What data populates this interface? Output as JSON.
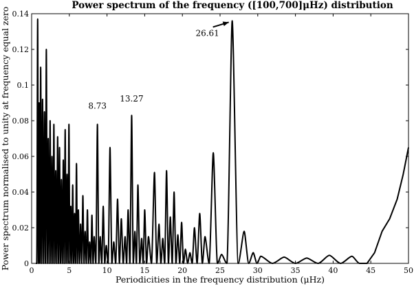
{
  "chart_data": {
    "type": "line",
    "title": "Power spectrum of the frequency ([100,700]μHz) distribution",
    "xlabel": "Periodicities in the frequency distribution (μHz)",
    "ylabel": "Power spectrum normalised to unity at frequency equal zero",
    "xlim": [
      0,
      50
    ],
    "ylim": [
      0,
      0.14
    ],
    "xticks": [
      0,
      5,
      10,
      15,
      20,
      25,
      30,
      35,
      40,
      45,
      50
    ],
    "xtick_labels": [
      "0",
      "5",
      "10",
      "15",
      "20",
      "25",
      "30",
      "35",
      "40",
      "45",
      "50"
    ],
    "yticks": [
      0,
      0.02,
      0.04,
      0.06,
      0.08,
      0.1,
      0.12,
      0.14
    ],
    "ytick_labels": [
      "0",
      "0.02",
      "0.04",
      "0.06",
      "0.08",
      "0.1",
      "0.12",
      "0.14"
    ],
    "grid": false,
    "line_color": "#000000",
    "annotations": [
      {
        "text": "8.73",
        "x": 8.73,
        "y": 0.086
      },
      {
        "text": "13.27",
        "x": 13.27,
        "y": 0.09
      },
      {
        "text": "26.61",
        "x": 26.61,
        "y": 0.136,
        "arrow": true
      }
    ],
    "peaks": [
      {
        "x": 0.8,
        "y": 0.137
      },
      {
        "x": 1.0,
        "y": 0.09
      },
      {
        "x": 1.2,
        "y": 0.11
      },
      {
        "x": 1.45,
        "y": 0.092
      },
      {
        "x": 1.7,
        "y": 0.085
      },
      {
        "x": 1.95,
        "y": 0.12
      },
      {
        "x": 2.2,
        "y": 0.07
      },
      {
        "x": 2.45,
        "y": 0.08
      },
      {
        "x": 2.7,
        "y": 0.06
      },
      {
        "x": 2.95,
        "y": 0.078
      },
      {
        "x": 3.2,
        "y": 0.052
      },
      {
        "x": 3.45,
        "y": 0.071
      },
      {
        "x": 3.7,
        "y": 0.065
      },
      {
        "x": 3.95,
        "y": 0.047
      },
      {
        "x": 4.2,
        "y": 0.058
      },
      {
        "x": 4.45,
        "y": 0.075
      },
      {
        "x": 4.7,
        "y": 0.05
      },
      {
        "x": 4.95,
        "y": 0.078
      },
      {
        "x": 5.2,
        "y": 0.032
      },
      {
        "x": 5.45,
        "y": 0.044
      },
      {
        "x": 5.7,
        "y": 0.028
      },
      {
        "x": 5.95,
        "y": 0.056
      },
      {
        "x": 6.2,
        "y": 0.03
      },
      {
        "x": 6.5,
        "y": 0.022
      },
      {
        "x": 6.8,
        "y": 0.038
      },
      {
        "x": 7.1,
        "y": 0.018
      },
      {
        "x": 7.4,
        "y": 0.03
      },
      {
        "x": 7.7,
        "y": 0.012
      },
      {
        "x": 8.0,
        "y": 0.027
      },
      {
        "x": 8.3,
        "y": 0.015
      },
      {
        "x": 8.73,
        "y": 0.078
      },
      {
        "x": 9.1,
        "y": 0.015
      },
      {
        "x": 9.5,
        "y": 0.032
      },
      {
        "x": 9.9,
        "y": 0.01
      },
      {
        "x": 10.4,
        "y": 0.065
      },
      {
        "x": 10.9,
        "y": 0.012
      },
      {
        "x": 11.4,
        "y": 0.036
      },
      {
        "x": 11.9,
        "y": 0.025
      },
      {
        "x": 12.4,
        "y": 0.015
      },
      {
        "x": 12.8,
        "y": 0.03
      },
      {
        "x": 13.27,
        "y": 0.083
      },
      {
        "x": 13.7,
        "y": 0.018
      },
      {
        "x": 14.1,
        "y": 0.044
      },
      {
        "x": 14.6,
        "y": 0.014
      },
      {
        "x": 15.0,
        "y": 0.03
      },
      {
        "x": 15.5,
        "y": 0.015
      },
      {
        "x": 16.3,
        "y": 0.051
      },
      {
        "x": 16.9,
        "y": 0.022
      },
      {
        "x": 17.4,
        "y": 0.014
      },
      {
        "x": 17.9,
        "y": 0.052
      },
      {
        "x": 18.4,
        "y": 0.026
      },
      {
        "x": 18.9,
        "y": 0.04
      },
      {
        "x": 19.4,
        "y": 0.016
      },
      {
        "x": 19.9,
        "y": 0.023
      },
      {
        "x": 20.4,
        "y": 0.008
      },
      {
        "x": 21.0,
        "y": 0.006
      },
      {
        "x": 21.6,
        "y": 0.02
      },
      {
        "x": 22.3,
        "y": 0.028
      },
      {
        "x": 23.0,
        "y": 0.015
      },
      {
        "x": 24.1,
        "y": 0.062
      },
      {
        "x": 25.2,
        "y": 0.005
      },
      {
        "x": 26.61,
        "y": 0.136
      },
      {
        "x": 28.2,
        "y": 0.018
      },
      {
        "x": 29.4,
        "y": 0.006
      },
      {
        "x": 30.4,
        "y": 0.004
      },
      {
        "x": 33.5,
        "y": 0.0035
      },
      {
        "x": 36.5,
        "y": 0.003
      },
      {
        "x": 39.5,
        "y": 0.0045
      },
      {
        "x": 42.5,
        "y": 0.004
      }
    ],
    "tail": [
      {
        "x": 44.5,
        "y": 0.0
      },
      {
        "x": 45.5,
        "y": 0.006
      },
      {
        "x": 46.5,
        "y": 0.018
      },
      {
        "x": 47.5,
        "y": 0.025
      },
      {
        "x": 48.5,
        "y": 0.036
      },
      {
        "x": 49.3,
        "y": 0.05
      },
      {
        "x": 50.0,
        "y": 0.065
      }
    ]
  }
}
